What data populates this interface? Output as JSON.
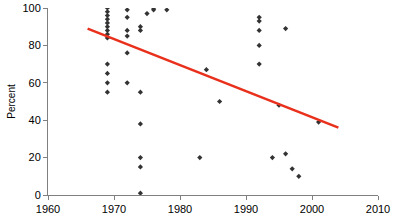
{
  "chart_data": {
    "type": "scatter",
    "y_label": "Percent",
    "xlim": [
      1960,
      2010
    ],
    "xticks": [
      1960,
      1970,
      1980,
      1990,
      2000,
      2010
    ],
    "ylim": [
      0,
      100
    ],
    "yticks": [
      0,
      20,
      40,
      60,
      80,
      100
    ],
    "grid": false,
    "series": [
      {
        "type": "scatter",
        "color": "#333333",
        "marker": "diamond",
        "x": [
          1969,
          1969,
          1969,
          1969,
          1969,
          1969,
          1969,
          1969,
          1969,
          1969,
          1969,
          1969,
          1969,
          1972,
          1972,
          1972,
          1972,
          1972,
          1972,
          1974,
          1974,
          1974,
          1974,
          1974,
          1974,
          1974,
          1975,
          1976,
          1976,
          1978,
          1983,
          1984,
          1986,
          1992,
          1992,
          1992,
          1992,
          1992,
          1994,
          1995,
          1996,
          1996,
          1997,
          1998,
          2001
        ],
        "values": [
          100,
          98,
          96,
          94,
          92,
          90,
          88,
          86,
          84,
          70,
          65,
          60,
          55,
          99,
          95,
          88,
          85,
          76,
          60,
          90,
          88,
          55,
          38,
          20,
          15,
          1,
          97,
          99,
          100,
          99,
          20,
          67,
          50,
          95,
          93,
          88,
          80,
          70,
          20,
          48,
          89,
          22,
          14,
          10,
          39
        ]
      },
      {
        "type": "line",
        "color": "#e8301c",
        "line_style": "solid",
        "x": [
          1966,
          2004
        ],
        "values": [
          89,
          36
        ]
      }
    ]
  }
}
